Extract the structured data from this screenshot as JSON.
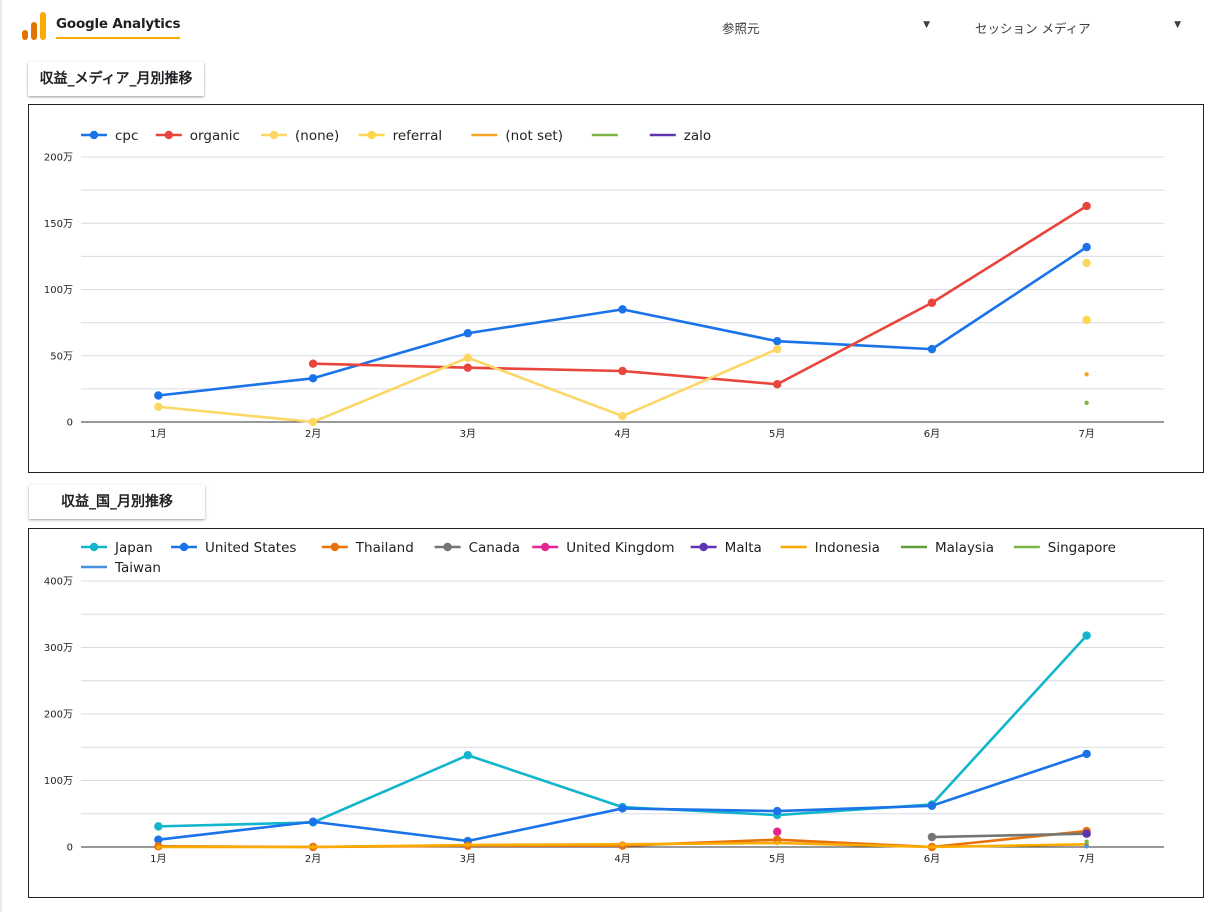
{
  "header": {
    "title": "Google Analytics",
    "filters": [
      {
        "label": "参照元"
      },
      {
        "label": "セッション メディア"
      }
    ],
    "logo_colors": [
      "#f9ab00",
      "#e37400"
    ]
  },
  "charts": [
    {
      "title": "収益_メディア_月別推移"
    },
    {
      "title": "収益_国_月別推移"
    }
  ],
  "chart_data": [
    {
      "type": "line",
      "title": "収益_メディア_月別推移",
      "categories": [
        "1月",
        "2月",
        "3月",
        "4月",
        "5月",
        "6月",
        "7月"
      ],
      "yticks": [
        "0",
        "50万",
        "100万",
        "150万",
        "200万"
      ],
      "ylim": [
        0,
        2000000
      ],
      "grid": true,
      "legend": "top",
      "series": [
        {
          "name": "cpc",
          "color": "#1a73e8",
          "marker": true,
          "values": [
            200000,
            330000,
            670000,
            850000,
            610000,
            550000,
            1320000
          ]
        },
        {
          "name": "organic",
          "color": "#e8453c",
          "marker": true,
          "values": [
            null,
            440000,
            410000,
            385000,
            285000,
            900000,
            1630000
          ]
        },
        {
          "name": "(none)",
          "color": "#fcd765",
          "marker": true,
          "values": [
            115000,
            0,
            485000,
            45000,
            550000,
            null,
            1200000
          ]
        },
        {
          "name": "referral",
          "color": "#fbd64e",
          "marker": true,
          "values": [
            null,
            null,
            null,
            null,
            null,
            null,
            770000
          ]
        },
        {
          "name": "(not set)",
          "color": "#f6a623",
          "marker": false,
          "values": [
            null,
            null,
            null,
            null,
            null,
            null,
            360000
          ]
        },
        {
          "name": "",
          "color": "#7cb342",
          "marker": false,
          "values": [
            null,
            null,
            null,
            null,
            null,
            null,
            145000
          ]
        },
        {
          "name": "zalo",
          "color": "#5e35b1",
          "marker": false,
          "values": [
            null,
            null,
            null,
            null,
            null,
            null,
            null
          ]
        }
      ]
    },
    {
      "type": "line",
      "title": "収益_国_月別推移",
      "categories": [
        "1月",
        "2月",
        "3月",
        "4月",
        "5月",
        "6月",
        "7月"
      ],
      "yticks": [
        "0",
        "100万",
        "200万",
        "300万",
        "400万"
      ],
      "ylim": [
        0,
        4000000
      ],
      "grid": true,
      "legend": "top",
      "series": [
        {
          "name": "Japan",
          "color": "#12b5cb",
          "marker": true,
          "values": [
            310000,
            370000,
            1380000,
            600000,
            480000,
            640000,
            3180000
          ]
        },
        {
          "name": "United States",
          "color": "#1a73e8",
          "marker": true,
          "values": [
            110000,
            380000,
            90000,
            580000,
            540000,
            620000,
            1400000
          ]
        },
        {
          "name": "Thailand",
          "color": "#e8710a",
          "marker": true,
          "values": [
            10000,
            0,
            20000,
            20000,
            110000,
            0,
            240000
          ]
        },
        {
          "name": "Canada",
          "color": "#757575",
          "marker": true,
          "values": [
            null,
            null,
            null,
            null,
            null,
            150000,
            200000
          ]
        },
        {
          "name": "United Kingdom",
          "color": "#e52592",
          "marker": true,
          "values": [
            null,
            null,
            null,
            null,
            230000,
            null,
            null
          ]
        },
        {
          "name": "Malta",
          "color": "#5e35b1",
          "marker": true,
          "values": [
            null,
            null,
            null,
            null,
            null,
            null,
            200000
          ]
        },
        {
          "name": "Indonesia",
          "color": "#f9ab00",
          "marker": false,
          "values": [
            0,
            0,
            30000,
            40000,
            60000,
            0,
            40000
          ]
        },
        {
          "name": "Malaysia",
          "color": "#5f9e3b",
          "marker": false,
          "values": [
            null,
            null,
            null,
            null,
            null,
            null,
            20000
          ]
        },
        {
          "name": "Singapore",
          "color": "#7cb342",
          "marker": false,
          "values": [
            null,
            null,
            null,
            null,
            null,
            null,
            80000
          ]
        },
        {
          "name": "Taiwan",
          "color": "#4a90e2",
          "marker": false,
          "values": [
            null,
            null,
            null,
            null,
            null,
            null,
            10000
          ]
        }
      ]
    }
  ]
}
